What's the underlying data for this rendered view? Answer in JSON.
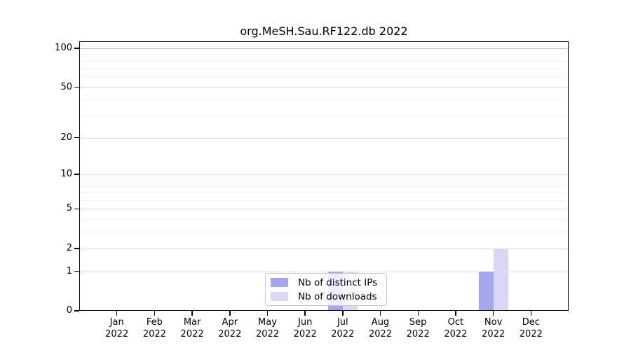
{
  "title": "org.MeSH.Sau.RF122.db 2022",
  "colors": {
    "distinct_ips_bar": "#a5a5f0",
    "downloads_bar": "#d9d9f7",
    "grid_major": "#dcdcdc",
    "grid_top": "#c4c4c4",
    "grid_minor": "#f0f0f0",
    "axis": "#000000"
  },
  "legend": {
    "items": [
      {
        "label": "Nb of distinct IPs",
        "color": "#a5a5f0"
      },
      {
        "label": "Nb of downloads",
        "color": "#d9d9f7"
      }
    ]
  },
  "y_axis": {
    "tick_labels": [
      "0",
      "1",
      "2",
      "5",
      "10",
      "20",
      "50",
      "100"
    ]
  },
  "x_axis": {
    "months": [
      "Jan",
      "Feb",
      "Mar",
      "Apr",
      "May",
      "Jun",
      "Jul",
      "Aug",
      "Sep",
      "Oct",
      "Nov",
      "Dec"
    ],
    "year": "2022"
  },
  "chart_data": {
    "type": "bar",
    "title": "org.MeSH.Sau.RF122.db 2022",
    "categories": [
      "Jan 2022",
      "Feb 2022",
      "Mar 2022",
      "Apr 2022",
      "May 2022",
      "Jun 2022",
      "Jul 2022",
      "Aug 2022",
      "Sep 2022",
      "Oct 2022",
      "Nov 2022",
      "Dec 2022"
    ],
    "series": [
      {
        "name": "Nb of distinct IPs",
        "color": "#a5a5f0",
        "values": [
          0,
          0,
          0,
          0,
          0,
          0,
          1,
          0,
          0,
          0,
          1,
          0
        ]
      },
      {
        "name": "Nb of downloads",
        "color": "#d9d9f7",
        "values": [
          0,
          0,
          0,
          0,
          0,
          0,
          1,
          0,
          0,
          0,
          2,
          0
        ]
      }
    ],
    "yscale": "log10(value+1)",
    "yticks": [
      0,
      1,
      2,
      5,
      10,
      20,
      50,
      100
    ],
    "minor_gridlines": [
      3,
      4,
      6,
      7,
      8,
      9,
      30,
      40,
      60,
      70,
      80,
      90
    ],
    "ylim": [
      0,
      113
    ],
    "grid": "horizontal",
    "legend_position": "bottom-center-inside"
  }
}
